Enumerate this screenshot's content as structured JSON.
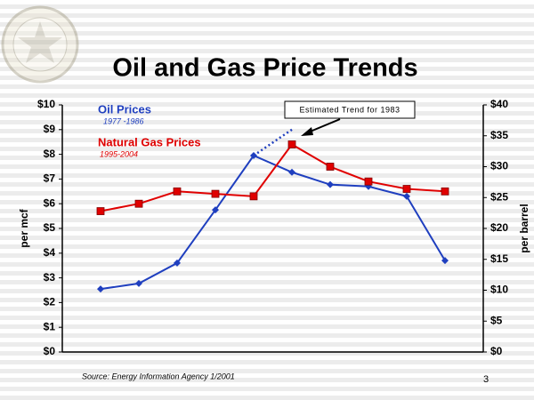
{
  "chart_data": {
    "type": "line",
    "title": "Oil and Gas Price Trends",
    "y_label": "per mcf",
    "y2_label": "per barrel",
    "source": "Source: Energy Information Agency 1/2001",
    "page_number": "3",
    "annotation": "Estimated Trend for 1983",
    "categories": [
      null,
      null,
      null,
      null,
      null,
      null,
      null,
      null,
      null,
      null
    ],
    "series": [
      {
        "name": "Oil Prices",
        "period": "1977 -1986",
        "color": "#1f3fbf",
        "axis": "y2",
        "marker": "diamond",
        "values": [
          10.2,
          11.1,
          14.4,
          23.0,
          31.8,
          29.1,
          27.1,
          26.8,
          25.2,
          14.8
        ]
      },
      {
        "name": "Natural Gas Prices",
        "period": "1995-2004",
        "color": "#e00000",
        "axis": "y",
        "marker": "square",
        "values": [
          5.7,
          6.0,
          6.5,
          6.4,
          6.3,
          8.4,
          7.5,
          6.9,
          6.6,
          6.5
        ]
      },
      {
        "color": "#1f3fbf",
        "axis": "y2",
        "dashed": true,
        "values": [
          null,
          null,
          null,
          null,
          31.8,
          36,
          null,
          null,
          null,
          null
        ]
      }
    ],
    "ylim": [
      0,
      10
    ],
    "yticks": [
      {
        "value": 0,
        "label": "$0"
      },
      {
        "value": 1,
        "label": "$1"
      },
      {
        "value": 2,
        "label": "$2"
      },
      {
        "value": 3,
        "label": "$3"
      },
      {
        "value": 4,
        "label": "$4"
      },
      {
        "value": 5,
        "label": "$5"
      },
      {
        "value": 6,
        "label": "$6"
      },
      {
        "value": 7,
        "label": "$7"
      },
      {
        "value": 8,
        "label": "$8"
      },
      {
        "value": 9,
        "label": "$9"
      },
      {
        "value": 10,
        "label": "$10"
      }
    ],
    "y2lim": [
      0,
      40
    ],
    "y2ticks": [
      {
        "value": 0,
        "label": "$0"
      },
      {
        "value": 5,
        "label": "$5"
      },
      {
        "value": 10,
        "label": "$10"
      },
      {
        "value": 15,
        "label": "$15"
      },
      {
        "value": 20,
        "label": "$20"
      },
      {
        "value": 25,
        "label": "$25"
      },
      {
        "value": 30,
        "label": "$30"
      },
      {
        "value": 35,
        "label": "$35"
      },
      {
        "value": 40,
        "label": "$40"
      }
    ],
    "grid": false
  }
}
